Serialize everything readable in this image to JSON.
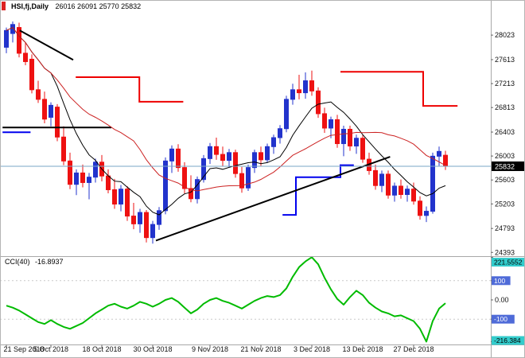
{
  "window": {
    "title_symbol": "HSI,fj,Daily",
    "title_ohlc": "26016 26091 25770 25832"
  },
  "colors": {
    "bull": "#2233cc",
    "bear": "#ee1111",
    "ma_fast": "#000000",
    "ma_slow": "#cc2222",
    "step_resistance": "#ee0000",
    "step_support": "#0000ee",
    "trendline": "#000000",
    "bid_line": "#7aa7c7",
    "cci_line": "#00bb00",
    "axis_text": "#111111",
    "separator": "#a8a8a8",
    "badge_current_bg": "#000000",
    "badge_current_text": "#ffffff",
    "badge_extreme_bg": "#33cccc",
    "badge_extreme_text": "#000000",
    "badge_level_bg": "#4f6bd8",
    "badge_level_text": "#ffffff"
  },
  "chart_data": {
    "type": "candlestick",
    "title": "HSI,fj,Daily",
    "current_price": 25832,
    "last_ohlc": {
      "open": 26016,
      "high": 26091,
      "low": 25770,
      "close": 25832
    },
    "y_axis": {
      "range": [
        24330,
        28410
      ],
      "ticks": [
        28023,
        27613,
        27213,
        26813,
        26403,
        26003,
        25603,
        25203,
        24793,
        24393
      ]
    },
    "x_axis": {
      "ticks": [
        {
          "i": 0,
          "label": "21 Sep 2018"
        },
        {
          "i": 7,
          "label": "5 Oct 2018"
        },
        {
          "i": 15,
          "label": "18 Oct 2018"
        },
        {
          "i": 23,
          "label": "30 Oct 2018"
        },
        {
          "i": 32,
          "label": "9 Nov 2018"
        },
        {
          "i": 40,
          "label": "21 Nov 2018"
        },
        {
          "i": 48,
          "label": "3 Dec 2018"
        },
        {
          "i": 56,
          "label": "13 Dec 2018"
        },
        {
          "i": 64,
          "label": "27 Dec 2018"
        }
      ]
    },
    "candles": [
      [
        27820,
        28150,
        27720,
        28100
      ],
      [
        28050,
        28250,
        27900,
        28200
      ],
      [
        28150,
        28230,
        27650,
        27720
      ],
      [
        27720,
        27900,
        27520,
        27580
      ],
      [
        27620,
        27700,
        27050,
        27110
      ],
      [
        27110,
        27260,
        26890,
        26950
      ],
      [
        26950,
        27080,
        26550,
        26620
      ],
      [
        26650,
        26900,
        26500,
        26850
      ],
      [
        26820,
        26870,
        26250,
        26320
      ],
      [
        26320,
        26500,
        25850,
        25920
      ],
      [
        25920,
        26060,
        25450,
        25530
      ],
      [
        25530,
        25780,
        25350,
        25720
      ],
      [
        25720,
        25860,
        25480,
        25560
      ],
      [
        25560,
        25720,
        25280,
        25650
      ],
      [
        25650,
        25960,
        25560,
        25900
      ],
      [
        25900,
        26020,
        25580,
        25670
      ],
      [
        25670,
        25780,
        25380,
        25440
      ],
      [
        25440,
        25620,
        25120,
        25200
      ],
      [
        25200,
        25520,
        25080,
        25450
      ],
      [
        25450,
        25500,
        24920,
        25000
      ],
      [
        25000,
        25220,
        24780,
        24870
      ],
      [
        24870,
        25120,
        24720,
        25060
      ],
      [
        25060,
        25100,
        24560,
        24640
      ],
      [
        24640,
        24920,
        24540,
        24860
      ],
      [
        24860,
        25150,
        24770,
        25090
      ],
      [
        25090,
        25980,
        25030,
        25920
      ],
      [
        25920,
        26180,
        25720,
        26120
      ],
      [
        26120,
        26200,
        25740,
        25810
      ],
      [
        25810,
        25900,
        25380,
        25460
      ],
      [
        25460,
        25680,
        25230,
        25290
      ],
      [
        25290,
        25660,
        25210,
        25610
      ],
      [
        25610,
        26020,
        25560,
        25960
      ],
      [
        25960,
        26220,
        25870,
        26160
      ],
      [
        26160,
        26310,
        25940,
        26030
      ],
      [
        26030,
        26160,
        25830,
        25930
      ],
      [
        25930,
        26120,
        25810,
        26060
      ],
      [
        26060,
        26110,
        25640,
        25710
      ],
      [
        25710,
        25820,
        25390,
        25470
      ],
      [
        25470,
        25860,
        25420,
        25810
      ],
      [
        25810,
        26110,
        25720,
        26060
      ],
      [
        26060,
        26160,
        25840,
        25940
      ],
      [
        25940,
        26210,
        25890,
        26160
      ],
      [
        26160,
        26360,
        26040,
        26310
      ],
      [
        26310,
        26520,
        26210,
        26460
      ],
      [
        26460,
        27010,
        26400,
        26950
      ],
      [
        26950,
        27210,
        26860,
        27110
      ],
      [
        27110,
        27360,
        26950,
        27060
      ],
      [
        27060,
        27400,
        26960,
        27260
      ],
      [
        27260,
        27430,
        27010,
        27090
      ],
      [
        27090,
        27150,
        26640,
        26710
      ],
      [
        26710,
        26810,
        26390,
        26470
      ],
      [
        26470,
        26660,
        26300,
        26610
      ],
      [
        26610,
        26690,
        26140,
        26210
      ],
      [
        26210,
        26510,
        26000,
        26450
      ],
      [
        26450,
        26510,
        26090,
        26170
      ],
      [
        26170,
        26360,
        26040,
        26300
      ],
      [
        26300,
        26350,
        25890,
        25950
      ],
      [
        25950,
        26060,
        25690,
        25760
      ],
      [
        25760,
        25860,
        25440,
        25510
      ],
      [
        25510,
        25760,
        25400,
        25700
      ],
      [
        25700,
        25760,
        25290,
        25350
      ],
      [
        25350,
        25560,
        25240,
        25500
      ],
      [
        25500,
        25610,
        25290,
        25360
      ],
      [
        25360,
        25510,
        25240,
        25450
      ],
      [
        25450,
        25560,
        25190,
        25250
      ],
      [
        25250,
        25330,
        24940,
        25010
      ],
      [
        25010,
        25160,
        24900,
        25080
      ],
      [
        25080,
        26060,
        25040,
        26000
      ],
      [
        26000,
        26160,
        25840,
        26080
      ],
      [
        26016,
        26091,
        25770,
        25832
      ]
    ],
    "moving_averages": [
      {
        "name": "ma-fast",
        "period": 8,
        "color_key": "ma_fast"
      },
      {
        "name": "ma-slow",
        "period": 21,
        "color_key": "ma_slow"
      }
    ],
    "overlay_lines": [
      {
        "name": "resistance-step-1",
        "color_key": "step_resistance",
        "width": 2,
        "interactable": false,
        "points": [
          [
            10.9,
            27320
          ],
          [
            20.9,
            27320
          ],
          [
            20.9,
            26910
          ],
          [
            27.8,
            26910
          ]
        ]
      },
      {
        "name": "resistance-step-2",
        "color_key": "step_resistance",
        "width": 2,
        "interactable": false,
        "points": [
          [
            52.5,
            27410
          ],
          [
            65.5,
            27410
          ],
          [
            65.5,
            26840
          ],
          [
            70.9,
            26840
          ]
        ]
      },
      {
        "name": "support-step-1",
        "color_key": "step_support",
        "width": 2,
        "interactable": false,
        "points": [
          [
            -0.6,
            26400
          ],
          [
            3.8,
            26400
          ]
        ]
      },
      {
        "name": "support-step-2",
        "color_key": "step_support",
        "width": 2,
        "interactable": false,
        "points": [
          [
            43.4,
            25020
          ],
          [
            45.5,
            25020
          ],
          [
            45.5,
            25650
          ],
          [
            52.5,
            25650
          ],
          [
            52.5,
            25850
          ],
          [
            54.6,
            25850
          ]
        ]
      },
      {
        "name": "horizontal-line",
        "color_key": "trendline",
        "width": 2,
        "interactable": true,
        "points": [
          [
            -0.6,
            26480
          ],
          [
            16.5,
            26480
          ]
        ]
      },
      {
        "name": "trendline-upper",
        "color_key": "trendline",
        "width": 2,
        "interactable": true,
        "points": [
          [
            2.1,
            28100
          ],
          [
            10.5,
            27610
          ]
        ]
      },
      {
        "name": "trendline-ascending",
        "color_key": "trendline",
        "width": 2,
        "interactable": true,
        "points": [
          [
            23.5,
            24590
          ],
          [
            60.3,
            25990
          ]
        ]
      }
    ],
    "indicator": {
      "title": "CCI(40)",
      "value_label": "-16.8937",
      "value": -16.8937,
      "range": [
        -219,
        223
      ],
      "levels": [
        100,
        -100
      ],
      "axis_entries": [
        {
          "label": "221.5552",
          "value": 221.5552,
          "style": "extreme"
        },
        {
          "label": "100",
          "value": 100,
          "style": "level"
        },
        {
          "label": "0.00",
          "value": 0,
          "style": "plain"
        },
        {
          "label": "-100",
          "value": -100,
          "style": "level"
        },
        {
          "label": "-216.384",
          "value": -216.384,
          "style": "extreme"
        }
      ],
      "values": [
        -30,
        -40,
        -55,
        -75,
        -95,
        -115,
        -125,
        -105,
        -125,
        -140,
        -150,
        -135,
        -120,
        -95,
        -70,
        -50,
        -30,
        -20,
        -35,
        -45,
        -30,
        -10,
        -20,
        -35,
        -20,
        0,
        10,
        -10,
        -40,
        -70,
        -50,
        -20,
        0,
        10,
        -5,
        -15,
        -30,
        -45,
        -25,
        -5,
        10,
        20,
        15,
        25,
        60,
        120,
        170,
        200,
        221.5552,
        185,
        115,
        55,
        5,
        -25,
        15,
        48,
        25,
        -15,
        -40,
        -60,
        -70,
        -85,
        -80,
        -95,
        -110,
        -150,
        -216.384,
        -110,
        -45,
        -16.8937
      ]
    }
  }
}
